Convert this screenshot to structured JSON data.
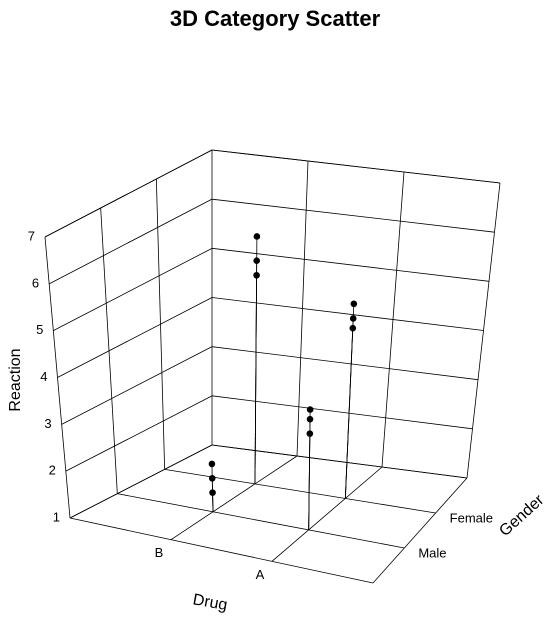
{
  "chart_data": {
    "type": "scatter3d",
    "title": "3D Category Scatter",
    "xlabel": "Drug",
    "ylabel": "Gender",
    "zlabel": "Reaction",
    "xcategories": [
      "B",
      "A"
    ],
    "ycategories": [
      "Male",
      "Female"
    ],
    "zlim": [
      1,
      7
    ],
    "zticks": [
      1,
      2,
      3,
      4,
      5,
      6,
      7
    ],
    "x": [
      "B",
      "B",
      "B",
      "B",
      "B",
      "B",
      "A",
      "A",
      "A",
      "A",
      "A",
      "A"
    ],
    "y": [
      "Male",
      "Male",
      "Male",
      "Female",
      "Female",
      "Female",
      "Male",
      "Male",
      "Male",
      "Female",
      "Female",
      "Female"
    ],
    "z": [
      1.4,
      1.7,
      2.0,
      5.3,
      5.6,
      6.1,
      3.0,
      3.3,
      3.5,
      4.5,
      4.7,
      5.0
    ],
    "color": "#000000",
    "grid": true
  }
}
